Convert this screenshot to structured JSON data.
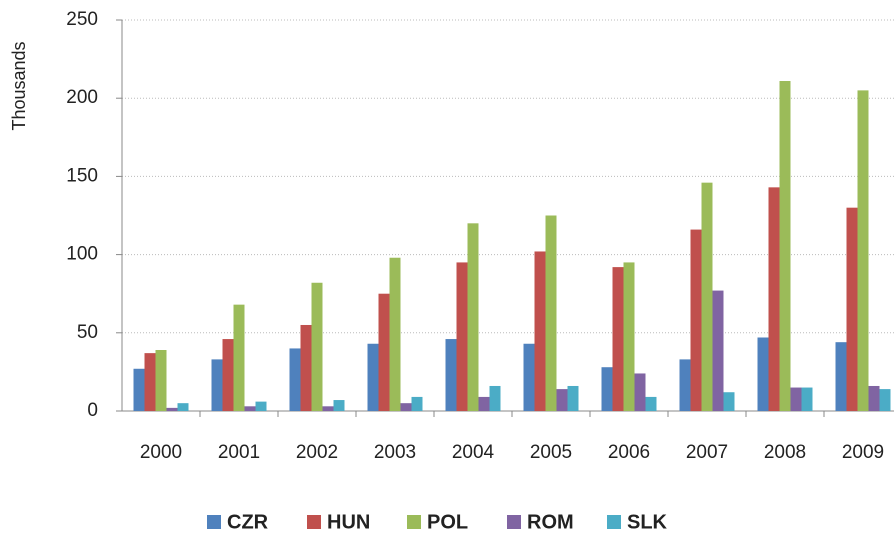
{
  "chart_data": {
    "type": "bar",
    "y_label": "Thousands",
    "categories": [
      "2000",
      "2001",
      "2002",
      "2003",
      "2004",
      "2005",
      "2006",
      "2007",
      "2008",
      "2009"
    ],
    "series": [
      {
        "name": "CZR",
        "color": "#4f81bd",
        "values": [
          27,
          33,
          40,
          43,
          46,
          43,
          28,
          33,
          47,
          44
        ]
      },
      {
        "name": "HUN",
        "color": "#c0504d",
        "values": [
          37,
          46,
          55,
          75,
          95,
          102,
          92,
          116,
          143,
          130
        ]
      },
      {
        "name": "POL",
        "color": "#9bbb59",
        "values": [
          39,
          68,
          82,
          98,
          120,
          125,
          95,
          146,
          211,
          205
        ]
      },
      {
        "name": "ROM",
        "color": "#8064a2",
        "values": [
          2,
          3,
          3,
          5,
          9,
          14,
          24,
          77,
          15,
          16
        ]
      },
      {
        "name": "SLK",
        "color": "#4bacc6",
        "values": [
          5,
          6,
          7,
          9,
          16,
          16,
          9,
          12,
          15,
          14
        ]
      }
    ],
    "ylim": [
      0,
      250
    ],
    "yticks": [
      0,
      50,
      100,
      150,
      200,
      250
    ],
    "grid": true,
    "legend": "bottom"
  }
}
